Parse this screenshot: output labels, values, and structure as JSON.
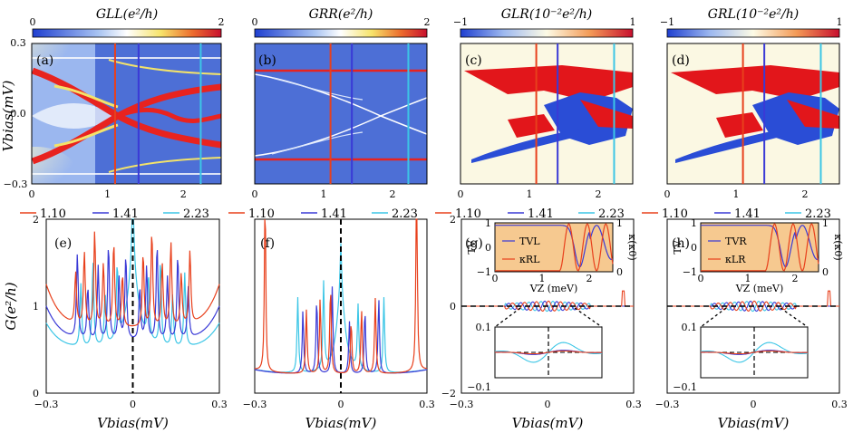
{
  "figure": {
    "top_row_ylabel": "Vbias(mV)",
    "bottom_row_ylabel": "G(e²/h)",
    "bottom_xlabel": "Vbias(mV)",
    "legend_values": [
      "1.10",
      "1.41",
      "2.23"
    ]
  },
  "colors": {
    "red": "#e8401c",
    "blue": "#3a3ad6",
    "cyan": "#3cc6e6",
    "map_background": "#4d6fd6",
    "ctrl_background": "#fbf8e3",
    "inset_background": "#f6c990"
  },
  "chart_data": [
    {
      "id": "a",
      "panel_label": "(a)",
      "type": "heatmap",
      "colorbar": {
        "title": "GLL(e²/h)",
        "min": "0",
        "max": "2",
        "scheme": "blue-white-yellow-red"
      },
      "xticks": [
        "0",
        "1",
        "2"
      ],
      "yticks": [
        "0.3",
        "0.0",
        "−0.3"
      ],
      "xlim": [
        0,
        2.5
      ],
      "ylim": [
        -0.3,
        0.3
      ],
      "cuts": [
        1.1,
        1.41,
        2.23
      ]
    },
    {
      "id": "b",
      "panel_label": "(b)",
      "type": "heatmap",
      "colorbar": {
        "title": "GRR(e²/h)",
        "min": "0",
        "max": "2",
        "scheme": "blue-white-yellow-red"
      },
      "xticks": [
        "0",
        "1",
        "2"
      ],
      "xlim": [
        0,
        2.5
      ],
      "ylim": [
        -0.3,
        0.3
      ],
      "cuts": [
        1.1,
        1.41,
        2.23
      ]
    },
    {
      "id": "c",
      "panel_label": "(c)",
      "type": "heatmap",
      "colorbar": {
        "title": "GLR(10⁻²e²/h)",
        "min": "−1",
        "max": "1",
        "scheme": "blue-white-red"
      },
      "xticks": [
        "0",
        "1",
        "2"
      ],
      "xlim": [
        0,
        2.5
      ],
      "ylim": [
        -0.3,
        0.3
      ],
      "cuts": [
        1.1,
        1.41,
        2.23
      ]
    },
    {
      "id": "d",
      "panel_label": "(d)",
      "type": "heatmap",
      "colorbar": {
        "title": "GRL(10⁻²e²/h)",
        "min": "−1",
        "max": "1",
        "scheme": "blue-white-red"
      },
      "xticks": [
        "0",
        "1",
        "2"
      ],
      "xlim": [
        0,
        2.5
      ],
      "ylim": [
        -0.3,
        0.3
      ],
      "cuts": [
        1.1,
        1.41,
        2.23
      ]
    },
    {
      "id": "e",
      "panel_label": "(e)",
      "type": "line",
      "xticks": [
        "−0.3",
        "0",
        "0.3"
      ],
      "yticks": [
        "2",
        "1",
        "0"
      ],
      "xlim": [
        -0.3,
        0.3
      ],
      "ylim": [
        0,
        2
      ],
      "series": [
        {
          "name": "1.10"
        },
        {
          "name": "1.41"
        },
        {
          "name": "2.23"
        }
      ]
    },
    {
      "id": "f",
      "panel_label": "(f)",
      "type": "line",
      "xticks": [
        "−0.3",
        "0",
        "0.3"
      ],
      "xlim": [
        -0.3,
        0.3
      ],
      "ylim": [
        0,
        2
      ],
      "series": [
        {
          "name": "1.10"
        },
        {
          "name": "1.41"
        },
        {
          "name": "2.23"
        }
      ]
    },
    {
      "id": "g",
      "panel_label": "(g)",
      "type": "line",
      "xticks": [
        "−0.3",
        "0",
        "0.3"
      ],
      "yticks": [
        "2",
        "0",
        "−2"
      ],
      "xlim": [
        -0.3,
        0.3
      ],
      "ylim": [
        -2,
        2
      ],
      "series": [
        {
          "name": "1.10"
        },
        {
          "name": "1.41"
        },
        {
          "name": "2.23"
        }
      ],
      "inset_top": {
        "xlabel": "VZ (meV)",
        "xticks": [
          "0",
          "1",
          "2"
        ],
        "left_ylabel": "TV",
        "left_yticks": [
          "1",
          "0",
          "−1"
        ],
        "right_ylabel": "κ(κ0)",
        "right_yticks": [
          "1",
          "0"
        ],
        "legend": [
          "TVL",
          "κRL"
        ]
      },
      "inset_zoom": {
        "yticks": [
          "0.1",
          "−0.1"
        ]
      }
    },
    {
      "id": "h",
      "panel_label": "(h)",
      "type": "line",
      "xticks": [
        "−0.3",
        "0",
        "0.3"
      ],
      "xlim": [
        -0.3,
        0.3
      ],
      "ylim": [
        -2,
        2
      ],
      "series": [
        {
          "name": "1.10"
        },
        {
          "name": "1.41"
        },
        {
          "name": "2.23"
        }
      ],
      "inset_top": {
        "xlabel": "VZ (meV)",
        "xticks": [
          "0",
          "1",
          "2"
        ],
        "left_ylabel": "TV",
        "left_yticks": [
          "1",
          "0",
          "−1"
        ],
        "right_ylabel": "κ(κ0)",
        "right_yticks": [
          "1",
          "0"
        ],
        "legend": [
          "TVR",
          "κLR"
        ]
      },
      "inset_zoom": {
        "yticks": [
          "0.1",
          "−0.1"
        ]
      }
    }
  ]
}
